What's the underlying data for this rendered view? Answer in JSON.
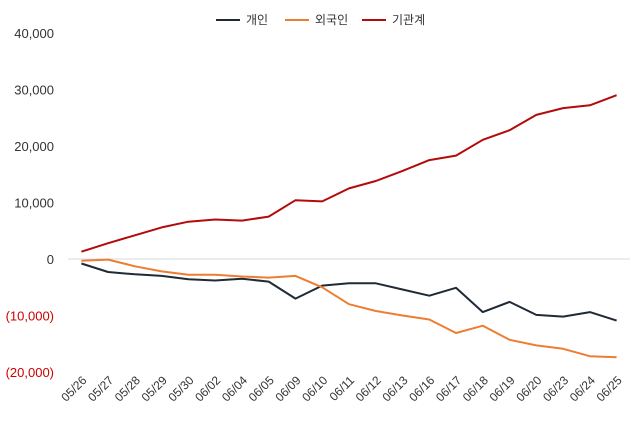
{
  "chart_data": {
    "type": "line",
    "title": "",
    "xlabel": "",
    "ylabel": "",
    "ylim": [
      -20000,
      40000
    ],
    "yticks": [
      40000,
      30000,
      20000,
      10000,
      0,
      -10000,
      -20000
    ],
    "ytick_labels": [
      "40,000",
      "30,000",
      "20,000",
      "10,000",
      "0",
      "(10,000)",
      "(20,000)"
    ],
    "categories": [
      "05/26",
      "05/27",
      "05/28",
      "05/29",
      "05/30",
      "06/02",
      "06/04",
      "06/05",
      "06/09",
      "06/10",
      "06/11",
      "06/12",
      "06/13",
      "06/16",
      "06/17",
      "06/18",
      "06/19",
      "06/20",
      "06/23",
      "06/24",
      "06/25"
    ],
    "legend_position": "top-center",
    "series": [
      {
        "name": "개인",
        "color": "#1f2a36",
        "values": [
          -800,
          -2300,
          -2700,
          -3000,
          -3600,
          -3800,
          -3500,
          -4000,
          -7000,
          -4700,
          -4300,
          -4300,
          -5400,
          -6500,
          -5100,
          -9400,
          -7600,
          -9900,
          -10200,
          -9400,
          -10900
        ]
      },
      {
        "name": "외국인",
        "color": "#ed7d31",
        "values": [
          -300,
          -100,
          -1300,
          -2200,
          -2800,
          -2800,
          -3100,
          -3300,
          -3000,
          -5000,
          -8000,
          -9200,
          -10000,
          -10700,
          -13100,
          -11800,
          -14300,
          -15300,
          -15900,
          -17200,
          -17400
        ]
      },
      {
        "name": "기관계",
        "color": "#b40a0a",
        "values": [
          1300,
          2800,
          4200,
          5600,
          6600,
          7000,
          6800,
          7500,
          10400,
          10200,
          12500,
          13800,
          15600,
          17500,
          18300,
          21100,
          22800,
          25500,
          26700,
          27200,
          29000
        ]
      }
    ]
  }
}
